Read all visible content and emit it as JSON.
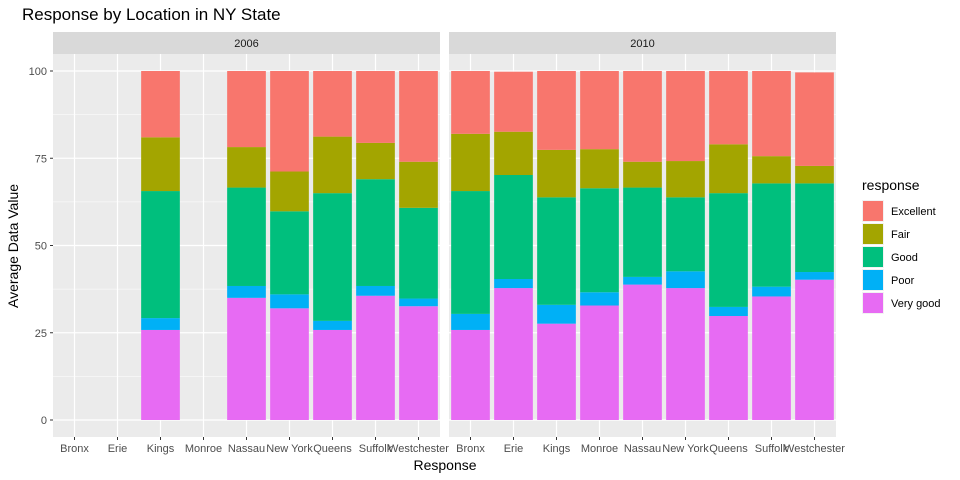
{
  "chart_data": {
    "type": "bar",
    "stacked": true,
    "title": "Response by Location in NY State",
    "xlabel": "Response",
    "ylabel": "Average Data Value",
    "ylim": [
      0,
      100
    ],
    "yticks": [
      0,
      25,
      50,
      75,
      100
    ],
    "grid": true,
    "legend": {
      "title": "response",
      "placement": "right",
      "entries": [
        "Excellent",
        "Fair",
        "Good",
        "Poor",
        "Very good"
      ]
    },
    "colors": {
      "Excellent": "#F8766D",
      "Fair": "#A3A500",
      "Good": "#00BF7D",
      "Poor": "#00B0F6",
      "Very good": "#E76BF3"
    },
    "stack_order_bottom_to_top": [
      "Very good",
      "Poor",
      "Good",
      "Fair",
      "Excellent"
    ],
    "categories": [
      "Bronx",
      "Erie",
      "Kings",
      "Monroe",
      "Nassau",
      "New York",
      "Queens",
      "Suffolk",
      "Westchester"
    ],
    "panels": [
      {
        "label": "2006",
        "series": [
          {
            "name": "Very good",
            "values": [
              null,
              null,
              25.8,
              null,
              35.0,
              32.0,
              25.8,
              35.6,
              32.6
            ]
          },
          {
            "name": "Poor",
            "values": [
              null,
              null,
              3.4,
              null,
              3.4,
              4.0,
              2.6,
              2.8,
              2.2
            ]
          },
          {
            "name": "Good",
            "values": [
              null,
              null,
              36.4,
              null,
              28.2,
              23.8,
              36.6,
              30.6,
              26.0
            ]
          },
          {
            "name": "Fair",
            "values": [
              null,
              null,
              15.4,
              null,
              11.6,
              11.4,
              16.2,
              10.4,
              13.2
            ]
          },
          {
            "name": "Excellent",
            "values": [
              null,
              null,
              19.0,
              null,
              21.8,
              28.8,
              18.8,
              20.6,
              26.0
            ]
          }
        ]
      },
      {
        "label": "2010",
        "series": [
          {
            "name": "Very good",
            "values": [
              25.8,
              37.8,
              27.6,
              32.8,
              38.8,
              37.8,
              29.8,
              35.4,
              40.2
            ]
          },
          {
            "name": "Poor",
            "values": [
              4.6,
              2.6,
              5.4,
              3.8,
              2.2,
              4.8,
              2.6,
              2.8,
              2.2
            ]
          },
          {
            "name": "Good",
            "values": [
              35.2,
              29.8,
              30.8,
              29.8,
              25.6,
              21.2,
              32.6,
              29.6,
              25.4
            ]
          },
          {
            "name": "Fair",
            "values": [
              16.4,
              12.4,
              13.6,
              11.2,
              7.4,
              10.4,
              14.0,
              7.8,
              5.0
            ]
          },
          {
            "name": "Excellent",
            "values": [
              18.0,
              17.2,
              22.6,
              22.4,
              26.0,
              25.8,
              21.0,
              24.4,
              26.8
            ]
          }
        ]
      }
    ]
  }
}
